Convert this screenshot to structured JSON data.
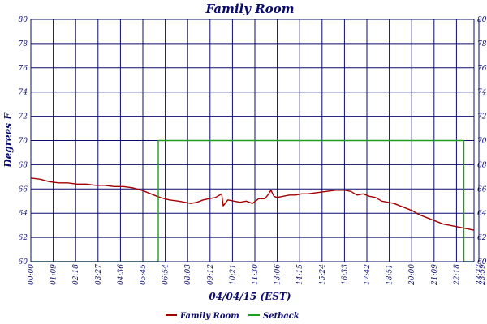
{
  "chart_data": {
    "type": "line",
    "title": "Family Room",
    "xlabel": "04/04/15 (EST)",
    "ylabel": "Degrees F",
    "ylim": [
      60,
      80
    ],
    "yticks": [
      60,
      62,
      64,
      66,
      68,
      70,
      72,
      74,
      76,
      78,
      80
    ],
    "xlim_minutes": [
      0,
      1440
    ],
    "xtick_labels": [
      "00:00",
      "01:09",
      "02:18",
      "03:27",
      "04:36",
      "05:45",
      "06:54",
      "08:03",
      "09:12",
      "10:21",
      "11:30",
      "13:06",
      "14:15",
      "15:24",
      "16:33",
      "17:42",
      "18:51",
      "20:00",
      "21:09",
      "22:18",
      "23:27",
      "23:59"
    ],
    "grid": true,
    "legend_position": "bottom",
    "colors": {
      "axis": "#0b0b6e",
      "grid": "#0b0b6e",
      "family_room": "#a30000",
      "setback": "#1aa01a"
    },
    "series": [
      {
        "name": "Family Room",
        "x": [
          "00:00",
          "00:30",
          "01:00",
          "01:30",
          "02:00",
          "02:30",
          "03:00",
          "03:30",
          "04:00",
          "04:30",
          "05:00",
          "05:30",
          "06:00",
          "06:30",
          "07:00",
          "07:30",
          "08:00",
          "08:20",
          "08:40",
          "09:00",
          "09:20",
          "09:40",
          "10:00",
          "10:20",
          "10:25",
          "10:40",
          "11:00",
          "11:20",
          "11:40",
          "12:00",
          "12:20",
          "12:40",
          "12:50",
          "13:00",
          "13:10",
          "13:20",
          "13:40",
          "14:00",
          "14:20",
          "14:40",
          "15:00",
          "15:30",
          "16:00",
          "16:30",
          "17:00",
          "17:20",
          "17:40",
          "18:00",
          "18:20",
          "18:40",
          "19:00",
          "19:20",
          "19:40",
          "20:00",
          "20:20",
          "20:40",
          "21:00",
          "21:20",
          "21:40",
          "22:00",
          "22:20",
          "22:40",
          "23:00",
          "23:20",
          "23:40",
          "23:59"
        ],
        "y": [
          66.9,
          66.8,
          66.6,
          66.5,
          66.5,
          66.4,
          66.4,
          66.3,
          66.3,
          66.2,
          66.2,
          66.1,
          65.9,
          65.6,
          65.3,
          65.1,
          65.0,
          64.9,
          64.8,
          64.9,
          65.1,
          65.2,
          65.3,
          65.6,
          64.6,
          65.1,
          65.0,
          64.9,
          65.0,
          64.8,
          65.2,
          65.2,
          65.5,
          65.9,
          65.4,
          65.3,
          65.4,
          65.5,
          65.5,
          65.6,
          65.6,
          65.7,
          65.8,
          65.9,
          65.9,
          65.8,
          65.5,
          65.6,
          65.4,
          65.3,
          65.0,
          64.9,
          64.8,
          64.6,
          64.4,
          64.2,
          63.9,
          63.7,
          63.5,
          63.3,
          63.1,
          63.0,
          62.9,
          62.8,
          62.7,
          62.6
        ]
      },
      {
        "name": "Setback",
        "x": [
          "00:00",
          "06:54",
          "06:54",
          "23:27",
          "23:27",
          "23:59"
        ],
        "y": [
          60,
          60,
          70,
          70,
          60,
          60
        ]
      }
    ]
  }
}
